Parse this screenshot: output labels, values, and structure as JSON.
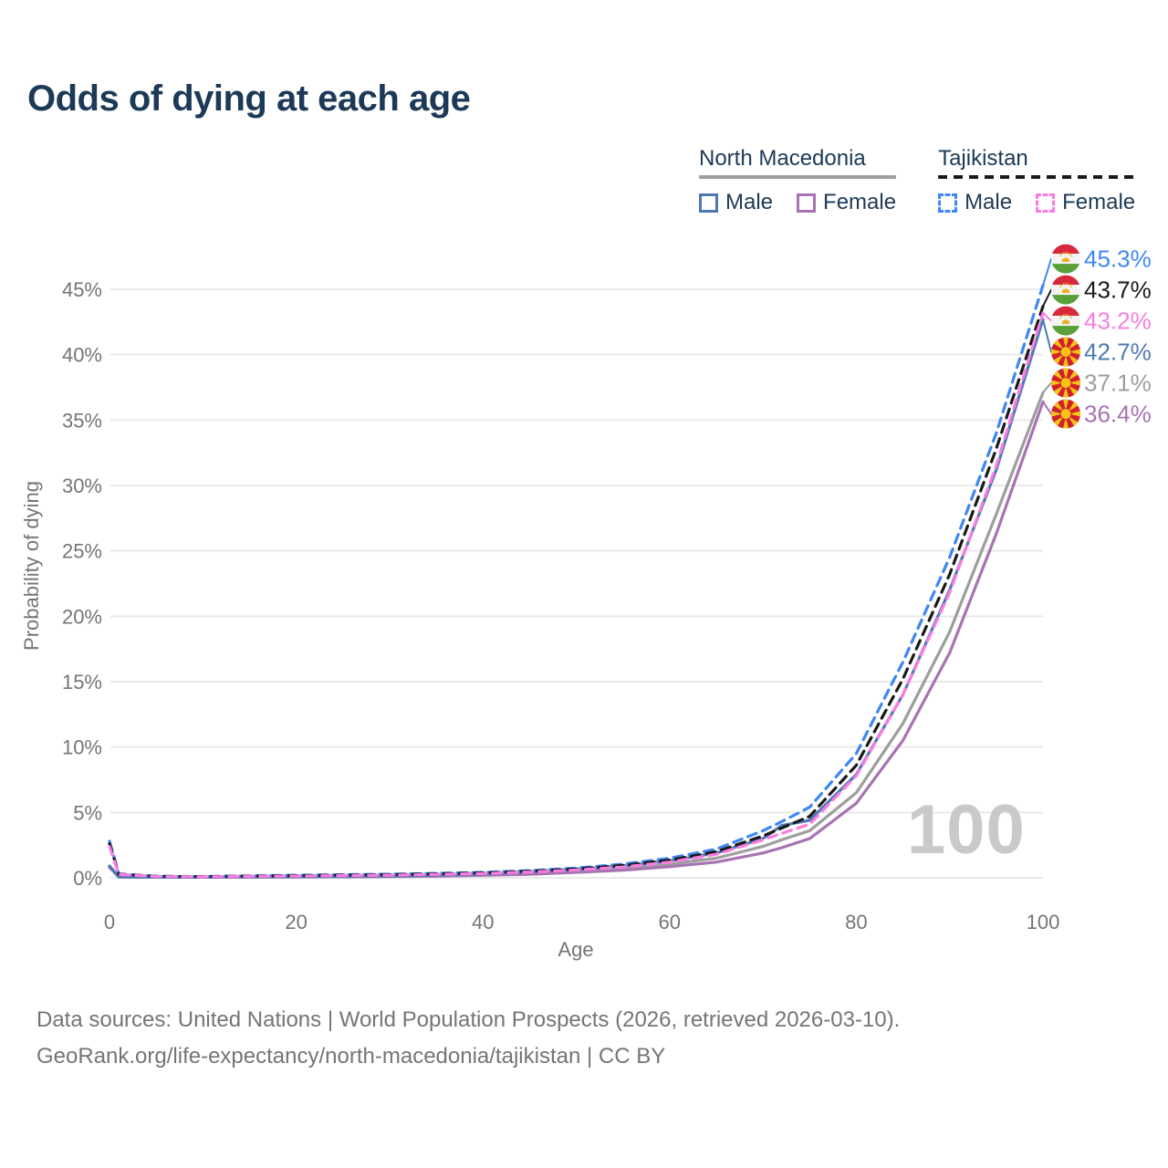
{
  "title": "Odds of dying at each age",
  "watermark": "100",
  "colors": {
    "navy": "#1c3a57",
    "axis": "#757575",
    "grid": "#e9e9e9",
    "watermark": "#c9c9c9",
    "background": "#ffffff",
    "tajikistan_male": "#3f87f5",
    "tajikistan_both": "#1a1a1a",
    "tajikistan_female": "#fa7ce1",
    "north_macedonia_male": "#4e79b5",
    "north_macedonia_both": "#9e9e9e",
    "north_macedonia_female": "#a873b3"
  },
  "legend": {
    "groups": [
      {
        "label": "North Macedonia",
        "line_color": "#9e9e9e",
        "line_dashed": false,
        "items": [
          {
            "label": "Male",
            "color": "#4e79b5",
            "dashed": false
          },
          {
            "label": "Female",
            "color": "#a873b3",
            "dashed": false
          }
        ]
      },
      {
        "label": "Tajikistan",
        "line_color": "#1a1a1a",
        "line_dashed": true,
        "items": [
          {
            "label": "Male",
            "color": "#3f87f5",
            "dashed": true
          },
          {
            "label": "Female",
            "color": "#fa7ce1",
            "dashed": true
          }
        ]
      }
    ]
  },
  "footer": {
    "line1": "Data sources: United Nations | World Population Prospects (2026, retrieved 2026-03-10).",
    "line2": "GeoRank.org/life-expectancy/north-macedonia/tajikistan | CC BY"
  },
  "chart_data": {
    "type": "line",
    "title": "Odds of dying at each age",
    "xlabel": "Age",
    "ylabel": "Probability of dying",
    "xlim": [
      0,
      100
    ],
    "ylim": [
      0,
      47
    ],
    "grid": "horizontal",
    "legend_position": "top-right",
    "x_ticks": [
      0,
      20,
      40,
      60,
      80,
      100
    ],
    "y_ticks": [
      0,
      5,
      10,
      15,
      20,
      25,
      30,
      35,
      40,
      45
    ],
    "y_tick_suffix": "%",
    "x": [
      0,
      1,
      5,
      10,
      15,
      20,
      25,
      30,
      35,
      40,
      45,
      50,
      55,
      60,
      65,
      70,
      72,
      75,
      80,
      85,
      90,
      95,
      100
    ],
    "series": [
      {
        "name": "Tajikistan Male",
        "country": "Tajikistan",
        "sex": "male",
        "color": "#3f87f5",
        "dashed": true,
        "end_label": "45.3%",
        "end_value": 45.3,
        "values": [
          2.8,
          0.3,
          0.12,
          0.1,
          0.15,
          0.2,
          0.24,
          0.28,
          0.34,
          0.42,
          0.55,
          0.75,
          1.05,
          1.5,
          2.2,
          3.6,
          4.3,
          5.4,
          9.5,
          16.5,
          24.5,
          34.0,
          45.3
        ]
      },
      {
        "name": "Tajikistan Both sexes",
        "country": "Tajikistan",
        "sex": "both",
        "color": "#1a1a1a",
        "dashed": true,
        "end_label": "43.7%",
        "end_value": 43.7,
        "values": [
          2.6,
          0.28,
          0.11,
          0.09,
          0.13,
          0.17,
          0.2,
          0.24,
          0.3,
          0.38,
          0.5,
          0.68,
          0.95,
          1.35,
          2.0,
          3.2,
          3.8,
          4.7,
          8.6,
          15.2,
          23.2,
          32.8,
          43.7
        ]
      },
      {
        "name": "Tajikistan Female",
        "country": "Tajikistan",
        "sex": "female",
        "color": "#fa7ce1",
        "dashed": true,
        "end_label": "43.2%",
        "end_value": 43.2,
        "values": [
          2.4,
          0.26,
          0.1,
          0.08,
          0.11,
          0.14,
          0.17,
          0.2,
          0.26,
          0.33,
          0.44,
          0.6,
          0.82,
          1.2,
          1.8,
          2.9,
          3.4,
          4.1,
          7.8,
          14.0,
          21.8,
          31.5,
          43.2
        ]
      },
      {
        "name": "North Macedonia Male",
        "country": "North Macedonia",
        "sex": "male",
        "color": "#4e79b5",
        "dashed": false,
        "end_label": "42.7%",
        "end_value": 42.7,
        "values": [
          0.9,
          0.08,
          0.05,
          0.05,
          0.08,
          0.1,
          0.12,
          0.15,
          0.2,
          0.3,
          0.45,
          0.65,
          0.9,
          1.3,
          1.9,
          3.0,
          4.0,
          4.4,
          7.9,
          14.0,
          22.0,
          31.2,
          42.7
        ]
      },
      {
        "name": "North Macedonia Both sexes",
        "country": "North Macedonia",
        "sex": "both",
        "color": "#9e9e9e",
        "dashed": false,
        "end_label": "37.1%",
        "end_value": 37.1,
        "values": [
          0.85,
          0.07,
          0.04,
          0.04,
          0.06,
          0.08,
          0.1,
          0.12,
          0.16,
          0.24,
          0.35,
          0.52,
          0.72,
          1.05,
          1.5,
          2.4,
          2.9,
          3.6,
          6.5,
          11.8,
          18.8,
          27.8,
          37.1
        ]
      },
      {
        "name": "North Macedonia Female",
        "country": "North Macedonia",
        "sex": "female",
        "color": "#a873b3",
        "dashed": false,
        "end_label": "36.4%",
        "end_value": 36.4,
        "values": [
          0.8,
          0.06,
          0.04,
          0.04,
          0.05,
          0.06,
          0.08,
          0.1,
          0.13,
          0.19,
          0.27,
          0.42,
          0.58,
          0.85,
          1.2,
          1.9,
          2.3,
          3.0,
          5.7,
          10.5,
          17.2,
          26.3,
          36.4
        ]
      }
    ]
  }
}
